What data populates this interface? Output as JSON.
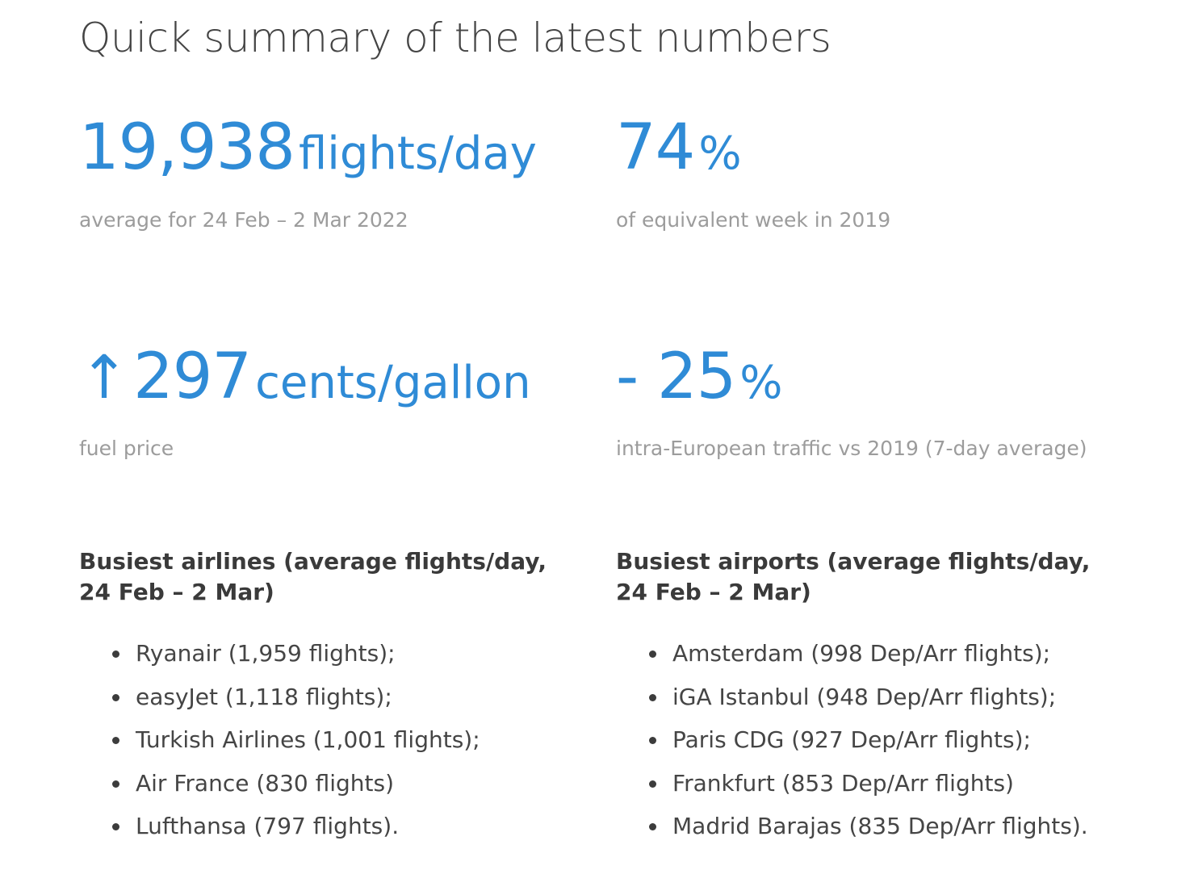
{
  "page": {
    "title": "Quick summary of the latest numbers"
  },
  "stats": {
    "daily_flights": {
      "number": "19,938",
      "unit": "flights/day",
      "caption": "average for 24 Feb – 2 Mar 2022"
    },
    "vs_2019": {
      "number": "74",
      "unit": "%",
      "caption": "of equivalent week in 2019"
    },
    "fuel_price": {
      "arrow": "↑",
      "number": "297",
      "unit": "cents/gallon",
      "caption": "fuel price"
    },
    "intra_europe": {
      "number": "- 25",
      "unit": "%",
      "caption": "intra-European traffic vs 2019 (7-day average)"
    }
  },
  "airlines": {
    "heading": "Busiest airlines (average flights/day, 24 Feb – 2 Mar)",
    "items": [
      "Ryanair (1,959 flights);",
      "easyJet (1,118 flights);",
      "Turkish Airlines (1,001 flights);",
      "Air France (830 flights)",
      "Lufthansa (797 flights)."
    ]
  },
  "airports": {
    "heading": "Busiest airports (average flights/day, 24 Feb – 2 Mar)",
    "items": [
      "Amsterdam (998 Dep/Arr flights);",
      "iGA Istanbul (948 Dep/Arr flights);",
      "Paris CDG (927 Dep/Arr flights);",
      "Frankfurt (853 Dep/Arr flights)",
      "Madrid Barajas (835 Dep/Arr flights)."
    ]
  },
  "colors": {
    "accent": "#2f8bd6",
    "caption": "#9c9c9c",
    "text": "#3c3c3c"
  }
}
